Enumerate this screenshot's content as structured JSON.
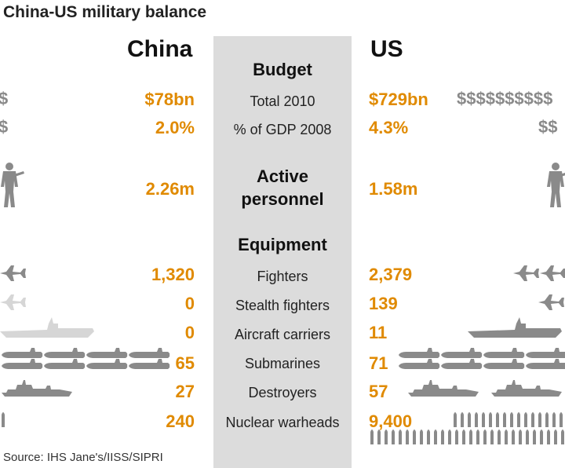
{
  "title": "China-US military balance",
  "columns": {
    "left": "China",
    "right": "US"
  },
  "sections": {
    "budget": "Budget",
    "personnel_line1": "Active",
    "personnel_line2": "personnel",
    "equipment": "Equipment"
  },
  "rows": {
    "total_budget": {
      "label": "Total 2010",
      "china": "$78bn",
      "us": "$729bn"
    },
    "gdp_share": {
      "label": "% of GDP 2008",
      "china": "2.0%",
      "us": "4.3%"
    },
    "personnel": {
      "china": "2.26m",
      "us": "1.58m"
    },
    "fighters": {
      "label": "Fighters",
      "china": "1,320",
      "us": "2,379"
    },
    "stealth": {
      "label": "Stealth fighters",
      "china": "0",
      "us": "139"
    },
    "carriers": {
      "label": "Aircraft carriers",
      "china": "0",
      "us": "11"
    },
    "submarines": {
      "label": "Submarines",
      "china": "65",
      "us": "71"
    },
    "destroyers": {
      "label": "Destroyers",
      "china": "27",
      "us": "57"
    },
    "warheads": {
      "label": "Nuclear warheads",
      "china": "240",
      "us": "9,400"
    }
  },
  "source": "Source: IHS Jane's/IISS/SIPRI",
  "colors": {
    "value": "#e08a00",
    "icon": "#8a8a8a",
    "icon_faded": "#d6d6d6",
    "band": "#dcdcdc"
  },
  "chart_data": {
    "type": "table",
    "title": "China-US military balance",
    "series": [
      {
        "name": "China",
        "values": [
          78,
          2.0,
          2.26,
          1320,
          0,
          0,
          65,
          27,
          240
        ]
      },
      {
        "name": "US",
        "values": [
          729,
          4.3,
          1.58,
          2379,
          139,
          11,
          71,
          57,
          9400
        ]
      }
    ],
    "categories": [
      "Total 2010",
      "% of GDP 2008",
      "Active personnel",
      "Fighters",
      "Stealth fighters",
      "Aircraft carriers",
      "Submarines",
      "Destroyers",
      "Nuclear warheads"
    ],
    "units": [
      "$bn",
      "%",
      "m",
      "",
      "",
      "",
      "",
      "",
      ""
    ]
  }
}
